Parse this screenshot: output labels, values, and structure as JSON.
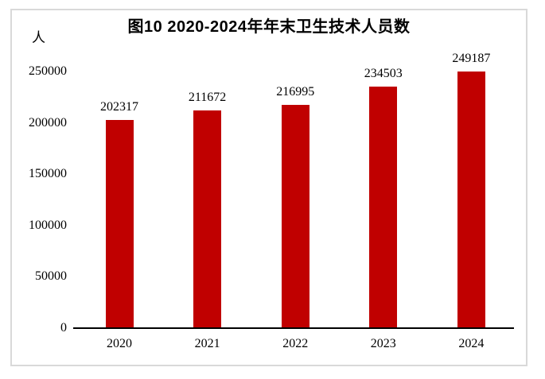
{
  "chart_data": {
    "type": "bar",
    "title": "图10  2020-2024年年末卫生技术人员数",
    "unit_label": "人",
    "categories": [
      "2020",
      "2021",
      "2022",
      "2023",
      "2024"
    ],
    "values": [
      202317,
      211672,
      216995,
      234503,
      249187
    ],
    "data_labels": [
      "202317",
      "211672",
      "216995",
      "234503",
      "249187"
    ],
    "yticks": [
      0,
      50000,
      100000,
      150000,
      200000,
      250000
    ],
    "ytick_labels": [
      "0",
      "50000",
      "100000",
      "150000",
      "200000",
      "250000"
    ],
    "ylim": [
      0,
      250000
    ],
    "xlabel": "",
    "ylabel": "人",
    "grid": false,
    "colors": {
      "bar": "#C00000",
      "axis": "#000000",
      "border": "#D9D9D9",
      "text": "#000000",
      "background": "#FFFFFF"
    }
  }
}
